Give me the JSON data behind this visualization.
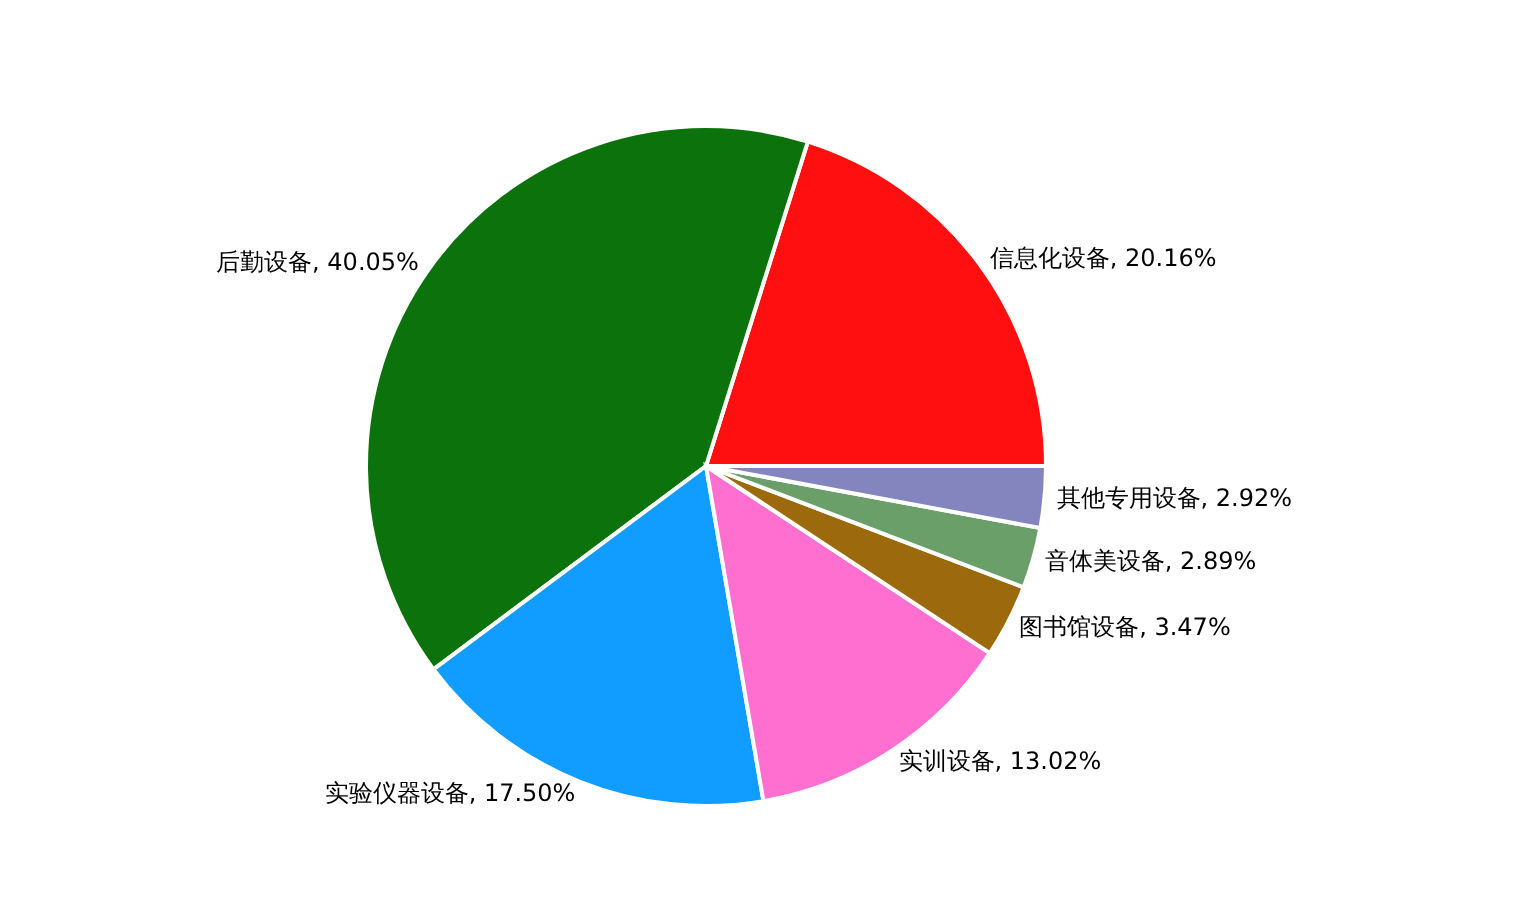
{
  "chart_data": {
    "type": "pie",
    "categories": [
      "信息化设备",
      "后勤设备",
      "实验仪器设备",
      "实训设备",
      "图书馆设备",
      "音体美设备",
      "其他专用设备"
    ],
    "values": [
      20.16,
      40.05,
      17.5,
      13.02,
      3.47,
      2.89,
      2.92
    ],
    "value_labels": [
      ", 20.16%",
      ", 40.05%",
      ", 17.50%",
      ", 13.02%",
      ", 3.47%",
      ", 2.89%",
      ", 2.92%"
    ],
    "colors": [
      "#ff0f0f",
      "#0c730c",
      "#119cff",
      "#ff6fcf",
      "#9c6a0c",
      "#6a9f6a",
      "#8484bf"
    ],
    "legend": false
  }
}
